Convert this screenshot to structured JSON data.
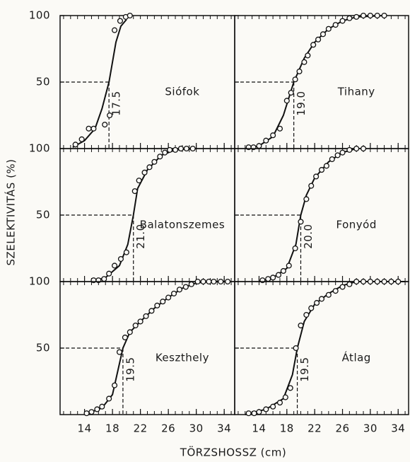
{
  "axes": {
    "xlabel": "TÖRZSHOSSZ (cm)",
    "ylabel": "SZELEKTIVITÁS (%)"
  },
  "chart_data": [
    {
      "type": "scatter",
      "title": "Siófok",
      "xlim": [
        10.5,
        35.5
      ],
      "ylim": [
        0,
        100
      ],
      "yticks": [
        50,
        100
      ],
      "xticks": [
        14,
        18,
        22,
        26,
        30,
        34
      ],
      "xminor": [
        11,
        12,
        13,
        14,
        15,
        16,
        17,
        18,
        19,
        20,
        21,
        22,
        23,
        24,
        25,
        26,
        27,
        28,
        29,
        30,
        31,
        32,
        33,
        34,
        35
      ],
      "l50": 17.5,
      "x": [
        12.7,
        13.6,
        14.6,
        15.3,
        16.9,
        17.6,
        18.3,
        19.1,
        19.9,
        20.5
      ],
      "values": [
        3,
        7,
        15,
        15,
        18,
        25,
        89,
        96,
        99,
        100
      ],
      "curve": {
        "x": [
          12.3,
          14,
          15.5,
          16.5,
          17.5,
          18.5,
          19.2,
          20
        ],
        "values": [
          1,
          6,
          15,
          30,
          50,
          80,
          92,
          97
        ]
      }
    },
    {
      "type": "scatter",
      "title": "Tihany",
      "xlim": [
        10.5,
        35.5
      ],
      "ylim": [
        0,
        100
      ],
      "yticks": [
        50,
        100
      ],
      "xticks": [
        14,
        18,
        22,
        26,
        30,
        34
      ],
      "xminor": [
        11,
        12,
        13,
        14,
        15,
        16,
        17,
        18,
        19,
        20,
        21,
        22,
        23,
        24,
        25,
        26,
        27,
        28,
        29,
        30,
        31,
        32,
        33,
        34,
        35
      ],
      "l50": {
        "value": 19,
        "label": "19.0"
      },
      "x": [
        12.5,
        13.2,
        14,
        15,
        16,
        17,
        18,
        18.6,
        19.2,
        19.8,
        20.5,
        21,
        21.8,
        22.5,
        23.2,
        24,
        25,
        26,
        27,
        28,
        29,
        30,
        31,
        32
      ],
      "values": [
        1,
        1,
        2,
        6,
        10,
        15,
        36,
        42,
        52,
        58,
        65,
        70,
        78,
        82,
        86,
        90,
        93,
        96,
        98,
        99,
        100,
        100,
        100,
        100
      ],
      "curve": {
        "x": [
          12,
          14,
          16,
          17.5,
          19,
          20.5,
          22,
          24,
          26,
          28,
          32
        ],
        "values": [
          0,
          2,
          9,
          25,
          50,
          68,
          80,
          90,
          96,
          99,
          100
        ]
      }
    },
    {
      "type": "scatter",
      "title": "Balatonszemes",
      "xlim": [
        10.5,
        35.5
      ],
      "ylim": [
        0,
        100
      ],
      "yticks": [
        50,
        100
      ],
      "xticks": [
        14,
        18,
        22,
        26,
        30,
        34
      ],
      "xminor": [
        11,
        12,
        13,
        14,
        15,
        16,
        17,
        18,
        19,
        20,
        21,
        22,
        23,
        24,
        25,
        26,
        27,
        28,
        29,
        30,
        31,
        32,
        33,
        34,
        35
      ],
      "l50": {
        "value": 21,
        "label": "21.0"
      },
      "x": [
        15.3,
        16,
        16.8,
        17.5,
        18.3,
        19.2,
        20,
        21.2,
        21.8,
        22.6,
        23.3,
        24,
        24.8,
        25.5,
        26.2,
        27,
        27.8,
        28.6,
        29.5
      ],
      "values": [
        1,
        1,
        2,
        6,
        12,
        17,
        22,
        68,
        76,
        82,
        86,
        90,
        94,
        97,
        99,
        99,
        100,
        100,
        100
      ],
      "curve": {
        "x": [
          15,
          17,
          19,
          20.2,
          21,
          21.6,
          23,
          25,
          27,
          30
        ],
        "values": [
          0,
          3,
          12,
          28,
          50,
          70,
          84,
          95,
          99,
          100
        ]
      }
    },
    {
      "type": "scatter",
      "title": "Fonyód",
      "xlim": [
        10.5,
        35.5
      ],
      "ylim": [
        0,
        100
      ],
      "yticks": [
        50,
        100
      ],
      "xticks": [
        14,
        18,
        22,
        26,
        30,
        34
      ],
      "xminor": [
        11,
        12,
        13,
        14,
        15,
        16,
        17,
        18,
        19,
        20,
        21,
        22,
        23,
        24,
        25,
        26,
        27,
        28,
        29,
        30,
        31,
        32,
        33,
        34,
        35
      ],
      "l50": {
        "value": 20,
        "label": "20.0"
      },
      "x": [
        14.5,
        15.3,
        16,
        16.8,
        17.5,
        18.3,
        19.2,
        20,
        20.8,
        21.5,
        22.2,
        23,
        23.7,
        24.5,
        25.3,
        26,
        27,
        28,
        29
      ],
      "values": [
        1,
        2,
        3,
        5,
        8,
        12,
        25,
        45,
        62,
        72,
        79,
        84,
        87,
        92,
        95,
        97,
        99,
        100,
        100
      ],
      "curve": {
        "x": [
          14,
          16,
          18,
          19.3,
          20,
          20.8,
          22,
          24,
          26,
          28
        ],
        "values": [
          0,
          3,
          10,
          28,
          50,
          65,
          78,
          90,
          97,
          100
        ]
      }
    },
    {
      "type": "scatter",
      "title": "Keszthely",
      "xlim": [
        10.5,
        35.5
      ],
      "ylim": [
        0,
        100
      ],
      "yticks": [
        50,
        100
      ],
      "xticks": [
        14,
        18,
        22,
        26,
        30,
        34
      ],
      "xminor": [
        11,
        12,
        13,
        14,
        15,
        16,
        17,
        18,
        19,
        20,
        21,
        22,
        23,
        24,
        25,
        26,
        27,
        28,
        29,
        30,
        31,
        32,
        33,
        34,
        35
      ],
      "l50": 19.5,
      "x": [
        14.3,
        15,
        15.8,
        16.5,
        17.5,
        18.3,
        19,
        19.8,
        20.5,
        21.3,
        22,
        22.8,
        23.6,
        24.4,
        25.2,
        26,
        26.8,
        27.6,
        28.5,
        29.3,
        30.2,
        31,
        31.8,
        32.5,
        33.5,
        34.5
      ],
      "values": [
        1,
        2,
        4,
        6,
        12,
        22,
        47,
        58,
        62,
        67,
        70,
        74,
        78,
        82,
        85,
        88,
        91,
        94,
        96,
        98,
        100,
        100,
        100,
        100,
        100,
        100
      ],
      "curve": {
        "x": [
          14,
          16.5,
          18,
          19.5,
          20.5,
          22,
          24,
          26,
          28,
          30,
          32,
          34
        ],
        "values": [
          0,
          5,
          15,
          50,
          62,
          70,
          80,
          88,
          95,
          99,
          100,
          100
        ]
      }
    },
    {
      "type": "scatter",
      "title": "Átlag",
      "xlim": [
        10.5,
        35.5
      ],
      "ylim": [
        0,
        100
      ],
      "yticks": [
        50,
        100
      ],
      "xticks": [
        14,
        18,
        22,
        26,
        30,
        34
      ],
      "xminor": [
        11,
        12,
        13,
        14,
        15,
        16,
        17,
        18,
        19,
        20,
        21,
        22,
        23,
        24,
        25,
        26,
        27,
        28,
        29,
        30,
        31,
        32,
        33,
        34,
        35
      ],
      "l50": 19.5,
      "x": [
        12.5,
        13.3,
        14,
        15,
        16,
        17,
        17.8,
        18.5,
        19.3,
        20,
        20.8,
        21.5,
        22.3,
        23,
        24,
        25,
        26,
        27,
        28,
        29,
        30,
        31,
        32,
        33,
        34
      ],
      "values": [
        1,
        1,
        2,
        4,
        6,
        9,
        13,
        20,
        50,
        67,
        75,
        80,
        84,
        87,
        90,
        93,
        96,
        98,
        100,
        100,
        100,
        100,
        100,
        100,
        100
      ],
      "curve": {
        "x": [
          12,
          15,
          17.5,
          18.8,
          19.5,
          20.5,
          22,
          24,
          26,
          28,
          35
        ],
        "values": [
          0,
          4,
          12,
          30,
          50,
          70,
          83,
          91,
          97,
          100,
          100
        ]
      }
    }
  ]
}
